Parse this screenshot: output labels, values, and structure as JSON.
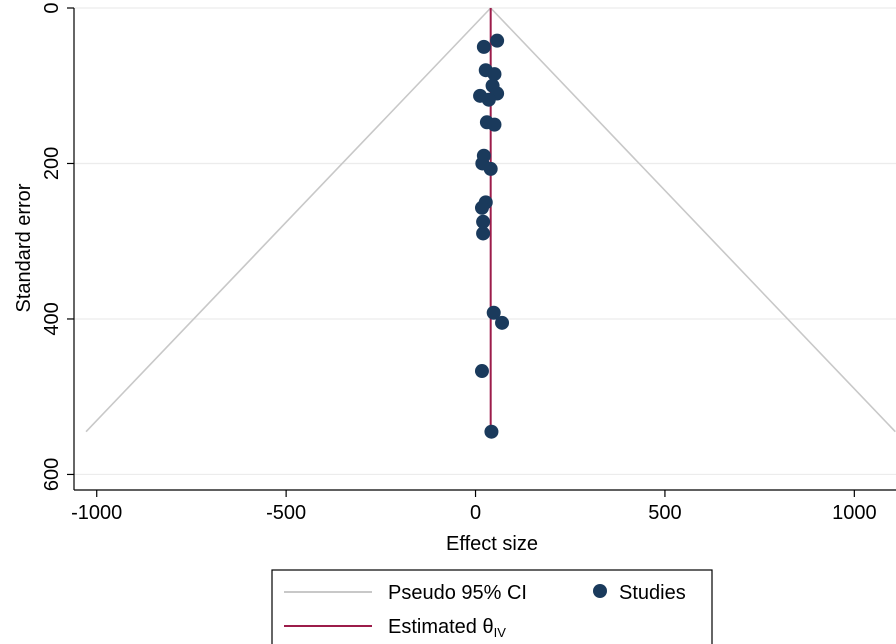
{
  "chart_data": {
    "type": "scatter",
    "title": "",
    "xlabel": "Effect size",
    "ylabel": "Standard error",
    "xlim": [
      -1060,
      1110
    ],
    "ylim": [
      0,
      620
    ],
    "y_reversed": true,
    "x_ticks": [
      -1000,
      -500,
      0,
      500,
      1000
    ],
    "y_ticks": [
      0,
      200,
      400,
      600
    ],
    "grid": true,
    "legend_position": "bottom",
    "estimate": 40,
    "ci_multiplier": 1.96,
    "ci_max_se": 545,
    "colors": {
      "studies": "#1a3a5c",
      "estimate": "#9c1c4a",
      "ci": "#c8c8c8",
      "grid": "#ececec"
    },
    "series": [
      {
        "name": "Studies",
        "points": [
          {
            "x": 57,
            "y": 42
          },
          {
            "x": 22,
            "y": 50
          },
          {
            "x": 27,
            "y": 80
          },
          {
            "x": 50,
            "y": 85
          },
          {
            "x": 45,
            "y": 100
          },
          {
            "x": 57,
            "y": 110
          },
          {
            "x": 12,
            "y": 113
          },
          {
            "x": 35,
            "y": 118
          },
          {
            "x": 30,
            "y": 147
          },
          {
            "x": 50,
            "y": 150
          },
          {
            "x": 22,
            "y": 190
          },
          {
            "x": 18,
            "y": 200
          },
          {
            "x": 40,
            "y": 207
          },
          {
            "x": 27,
            "y": 250
          },
          {
            "x": 17,
            "y": 257
          },
          {
            "x": 20,
            "y": 275
          },
          {
            "x": 20,
            "y": 290
          },
          {
            "x": 48,
            "y": 392
          },
          {
            "x": 70,
            "y": 405
          },
          {
            "x": 17,
            "y": 467
          },
          {
            "x": 42,
            "y": 545
          }
        ]
      }
    ],
    "legend": {
      "ci_label": "Pseudo 95% CI",
      "studies_label": "Studies",
      "estimate_label": "Estimated θ",
      "estimate_subscript": "IV"
    }
  }
}
